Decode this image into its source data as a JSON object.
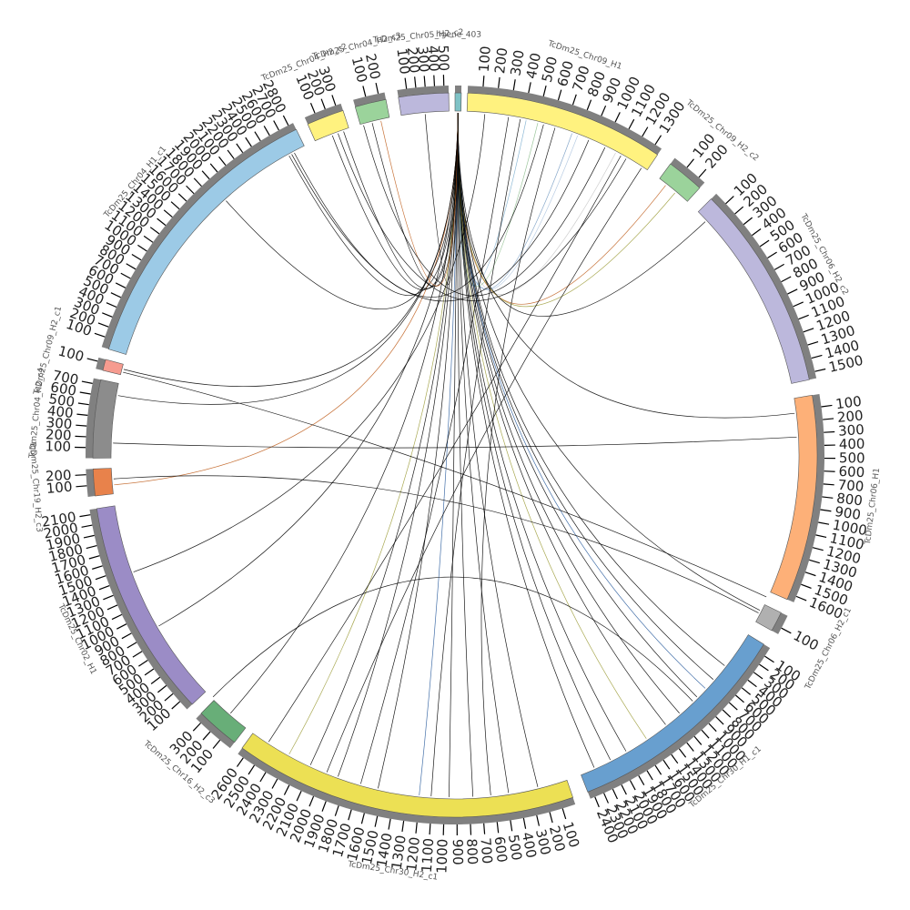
{
  "chart_data": {
    "type": "circos",
    "segments": [
      {
        "name": "hgene_403",
        "color": "#7fc2c6",
        "start_deg": 0.0,
        "end_deg": 1.0,
        "labels": []
      },
      {
        "name": "TcDm25_Chr09_H1",
        "color": "#fff27f",
        "start_deg": 2.0,
        "end_deg": 34.0,
        "labels": [
          "100",
          "200",
          "300",
          "400",
          "500",
          "600",
          "700",
          "800",
          "900",
          "1000",
          "1100",
          "1200",
          "1300"
        ]
      },
      {
        "name": "TcDm25_Chr09_H2_c2",
        "color": "#9bd39b",
        "start_deg": 36.5,
        "end_deg": 42.5,
        "labels": [
          "100",
          "200"
        ]
      },
      {
        "name": "TcDm25_Chr06_H2_c2",
        "color": "#bcb8dc",
        "start_deg": 45.0,
        "end_deg": 78.0,
        "labels": [
          "100",
          "200",
          "300",
          "400",
          "500",
          "600",
          "700",
          "800",
          "900",
          "1000",
          "1100",
          "1200",
          "1300",
          "1400",
          "1500"
        ]
      },
      {
        "name": "TcDm25_Chr06_H1",
        "color": "#fdb078",
        "start_deg": 80.5,
        "end_deg": 113.5,
        "labels": [
          "100",
          "200",
          "300",
          "400",
          "500",
          "600",
          "700",
          "800",
          "900",
          "1000",
          "1100",
          "1200",
          "1300",
          "1400",
          "1500",
          "1600"
        ]
      },
      {
        "name": "TcDm25_Chr06_H2_c1",
        "color": "#b0b0b0",
        "start_deg": 115.8,
        "end_deg": 119.0,
        "labels": [
          "100"
        ]
      },
      {
        "name": "TcDm25_Chr30_H1_c1",
        "color": "#689fcf",
        "start_deg": 121.5,
        "end_deg": 158.5,
        "labels": [
          "100",
          "200",
          "300",
          "400",
          "500",
          "600",
          "700",
          "800",
          "900",
          "1000",
          "1100",
          "1200",
          "1300",
          "1400",
          "1500",
          "1600",
          "1700",
          "1800",
          "1900",
          "2000",
          "2100",
          "2200",
          "2300",
          "2400"
        ]
      },
      {
        "name": "TcDm25_Chr30_H2_c1",
        "color": "#ece054",
        "start_deg": 161.0,
        "end_deg": 216.0,
        "labels": [
          "100",
          "200",
          "300",
          "400",
          "500",
          "600",
          "700",
          "800",
          "900",
          "1000",
          "1100",
          "1200",
          "1300",
          "1400",
          "1500",
          "1600",
          "1700",
          "1800",
          "1900",
          "2000",
          "2100",
          "2200",
          "2300",
          "2400",
          "2500",
          "2600"
        ]
      },
      {
        "name": "TcDm25_Chr16_H2_c3",
        "color": "#68ae78",
        "start_deg": 217.5,
        "end_deg": 224.5,
        "labels": [
          "100",
          "200",
          "300"
        ]
      },
      {
        "name": "TcDm25_Chr02_H1",
        "color": "#9b8cc6",
        "start_deg": 226.5,
        "end_deg": 261.5,
        "labels": [
          "100",
          "200",
          "300",
          "400",
          "500",
          "600",
          "700",
          "800",
          "900",
          "1000",
          "1100",
          "1200",
          "1300",
          "1400",
          "1500",
          "1600",
          "1700",
          "1800",
          "1900",
          "2000",
          "2100"
        ]
      },
      {
        "name": "TcDm25_Chr19_H2_c3",
        "color": "#e8824b",
        "start_deg": 263.5,
        "end_deg": 267.8,
        "labels": [
          "100",
          "200"
        ]
      },
      {
        "name": "TcDm25_Chr04_H2_c4",
        "color": "#8c8c8c",
        "start_deg": 269.5,
        "end_deg": 282.0,
        "labels": [
          "100",
          "200",
          "300",
          "400",
          "500",
          "600",
          "700"
        ]
      },
      {
        "name": "TcDm25_Chr09_H2_c1",
        "color": "#f69b8f",
        "start_deg": 283.5,
        "end_deg": 285.3,
        "labels": [
          "100"
        ]
      },
      {
        "name": "TcDm25_Chr04_H1_c1",
        "color": "#9ccae6",
        "start_deg": 287.0,
        "end_deg": 334.0,
        "labels": [
          "100",
          "200",
          "300",
          "400",
          "500",
          "600",
          "700",
          "800",
          "900",
          "1000",
          "1100",
          "1200",
          "1300",
          "1400",
          "1500",
          "1600",
          "1700",
          "1800",
          "1900",
          "2000",
          "2100",
          "2200",
          "2300",
          "2400",
          "2500",
          "2600",
          "2700",
          "2800"
        ]
      },
      {
        "name": "TcDm25_Chr04_H2_c2",
        "color": "#fff27f",
        "start_deg": 336.0,
        "end_deg": 342.0,
        "labels": [
          "100",
          "200",
          "300"
        ]
      },
      {
        "name": "TcDm25_Chr04_H2_c3",
        "color": "#9bd39b",
        "start_deg": 344.0,
        "end_deg": 349.0,
        "labels": [
          "100",
          "200"
        ]
      },
      {
        "name": "TcDm25_Chr05_H2_c2",
        "color": "#bcb8dc",
        "start_deg": 351.0,
        "end_deg": 359.0,
        "labels": [
          "100",
          "200",
          "300",
          "400",
          "500"
        ]
      }
    ],
    "links": [
      {
        "from": 0.5,
        "to": 28.0,
        "color": "#c8c8c8"
      },
      {
        "from": 0.5,
        "to": 21.0,
        "color": "#b0c6e0"
      },
      {
        "from": 0.5,
        "to": 20.0,
        "color": "#7a9ec4"
      },
      {
        "from": 0.5,
        "to": 14.0,
        "color": "#8fbf8f"
      },
      {
        "from": 0.5,
        "to": 12.0,
        "color": "#7fb0d0"
      },
      {
        "from": 0.5,
        "to": 38.0,
        "color": "#c06020"
      },
      {
        "from": 0.5,
        "to": 40.0,
        "color": "#a0a040"
      },
      {
        "from": 0.5,
        "to": 47.0,
        "color": "#000000"
      },
      {
        "from": 0.5,
        "to": 83.0,
        "color": "#000000"
      },
      {
        "from": 0.5,
        "to": 117.0,
        "color": "#000000"
      },
      {
        "from": 0.5,
        "to": 128.0,
        "color": "#000000"
      },
      {
        "from": 0.5,
        "to": 131.0,
        "color": "#000000"
      },
      {
        "from": 0.5,
        "to": 133.0,
        "color": "#3060a0"
      },
      {
        "from": 0.5,
        "to": 135.0,
        "color": "#000000"
      },
      {
        "from": 0.5,
        "to": 139.0,
        "color": "#000000"
      },
      {
        "from": 0.5,
        "to": 142.0,
        "color": "#000000"
      },
      {
        "from": 0.5,
        "to": 146.0,
        "color": "#a0a040"
      },
      {
        "from": 0.5,
        "to": 150.0,
        "color": "#000000"
      },
      {
        "from": 0.5,
        "to": 153.0,
        "color": "#000000"
      },
      {
        "from": 0.5,
        "to": 156.0,
        "color": "#000000"
      },
      {
        "from": 0.5,
        "to": 166.0,
        "color": "#000000"
      },
      {
        "from": 0.5,
        "to": 171.0,
        "color": "#000000"
      },
      {
        "from": 0.5,
        "to": 177.0,
        "color": "#000000"
      },
      {
        "from": 0.5,
        "to": 181.0,
        "color": "#000000"
      },
      {
        "from": 0.5,
        "to": 186.0,
        "color": "#3060a0"
      },
      {
        "from": 0.5,
        "to": 193.0,
        "color": "#000000"
      },
      {
        "from": 0.5,
        "to": 200.0,
        "color": "#000000"
      },
      {
        "from": 0.5,
        "to": 205.0,
        "color": "#000000"
      },
      {
        "from": 0.5,
        "to": 209.0,
        "color": "#a0a040"
      },
      {
        "from": 0.5,
        "to": 221.0,
        "color": "#000000"
      },
      {
        "from": 0.5,
        "to": 240.0,
        "color": "#000000"
      },
      {
        "from": 0.5,
        "to": 265.0,
        "color": "#c06020"
      },
      {
        "from": 0.5,
        "to": 280.0,
        "color": "#000000"
      },
      {
        "from": 0.5,
        "to": 284.5,
        "color": "#000000"
      },
      {
        "from": 0.5,
        "to": 318.0,
        "color": "#000000"
      },
      {
        "from": 0.5,
        "to": 331.0,
        "color": "#000000"
      },
      {
        "from": 0.5,
        "to": 339.0,
        "color": "#000000"
      },
      {
        "from": 0.5,
        "to": 341.0,
        "color": "#000000"
      },
      {
        "from": 0.5,
        "to": 346.0,
        "color": "#000000"
      },
      {
        "from": 0.5,
        "to": 347.5,
        "color": "#c06020"
      },
      {
        "from": 0.5,
        "to": 355.0,
        "color": "#000000"
      },
      {
        "from": 332.0,
        "to": 15.0,
        "color": "#000000"
      },
      {
        "from": 331.5,
        "to": 23.0,
        "color": "#000000"
      },
      {
        "from": 340.0,
        "to": 30.0,
        "color": "#000000"
      },
      {
        "from": 344.5,
        "to": 26.0,
        "color": "#000000"
      },
      {
        "from": 284.0,
        "to": 114.5,
        "color": "#000000"
      },
      {
        "from": 272.0,
        "to": 87.0,
        "color": "#000000"
      },
      {
        "from": 266.0,
        "to": 117.5,
        "color": "#000000"
      },
      {
        "from": 225.0,
        "to": 136.0,
        "color": "#000000"
      },
      {
        "from": 250.0,
        "to": 5.0,
        "color": "#000000"
      },
      {
        "from": 196.0,
        "to": 9.0,
        "color": "#000000"
      },
      {
        "from": 184.0,
        "to": 11.0,
        "color": "#000000"
      },
      {
        "from": 174.0,
        "to": 17.0,
        "color": "#000000"
      },
      {
        "from": 213.0,
        "to": 29.0,
        "color": "#000000"
      },
      {
        "from": 202.0,
        "to": 33.0,
        "color": "#000000"
      }
    ]
  }
}
